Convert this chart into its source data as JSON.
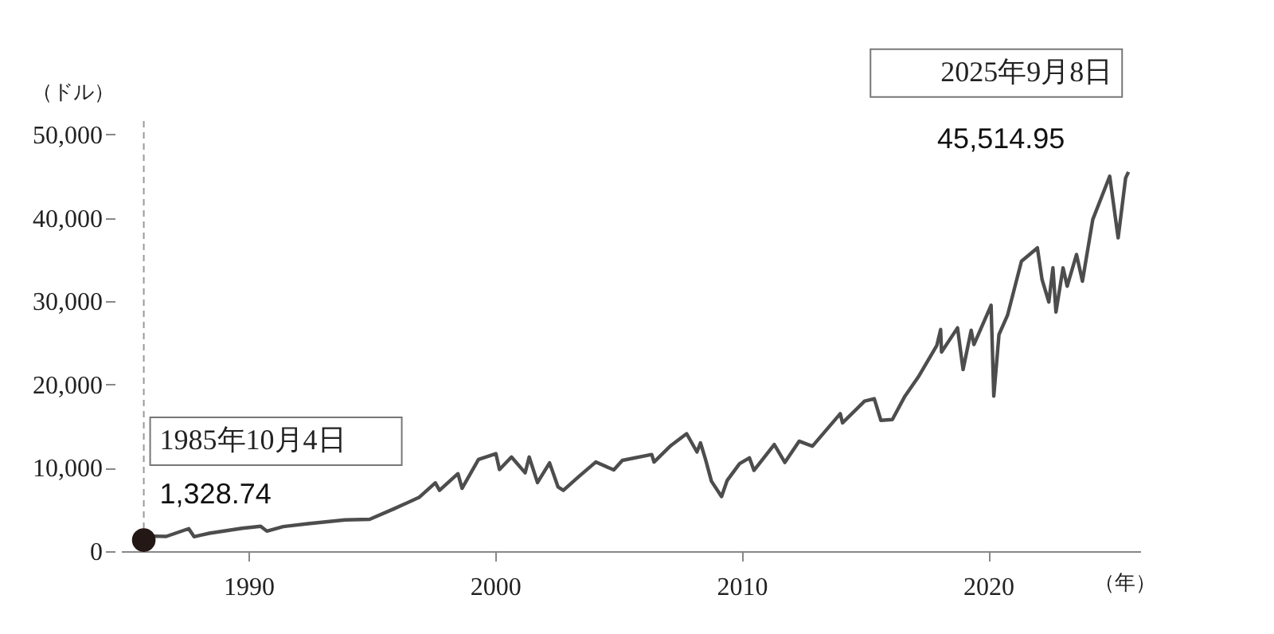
{
  "chart_data": {
    "type": "line",
    "ylabel": "（ドル）",
    "xlabel": "（年）",
    "xlim": [
      "1984-11-01",
      "2026-03-01"
    ],
    "ylim": [
      0,
      52000
    ],
    "xticks": [
      "1990",
      "2000",
      "2010",
      "2020"
    ],
    "yticks": [
      0,
      {
        "value": 10000,
        "label": "10,000"
      },
      {
        "value": 20000,
        "label": "20,000"
      },
      {
        "value": 30000,
        "label": "30,000"
      },
      {
        "value": 40000,
        "label": "40,000"
      },
      {
        "value": 50000,
        "label": "50,000"
      }
    ],
    "grid": false,
    "series": [
      {
        "color": "#4d4d4d",
        "x": [
          "1985-10-04",
          "1986-03-01",
          "1986-09-01",
          "1987-08-01",
          "1987-10-19",
          "1988-06-01",
          "1989-10-01",
          "1990-07-01",
          "1990-10-01",
          "1991-06-01",
          "1992-06-01",
          "1993-12-01",
          "1994-12-01",
          "1995-12-01",
          "1996-12-01",
          "1997-08-01",
          "1997-10-01",
          "1998-07-01",
          "1998-08-31",
          "1999-05-01",
          "2000-01-14",
          "2000-03-07",
          "2000-09-01",
          "2001-03-22",
          "2001-05-21",
          "2001-09-21",
          "2002-03-19",
          "2002-07-23",
          "2002-10-09",
          "2003-06-01",
          "2004-02-01",
          "2004-10-25",
          "2005-03-01",
          "2006-05-10",
          "2006-06-13",
          "2007-02-20",
          "2007-10-09",
          "2008-03-10",
          "2008-05-01",
          "2008-07-15",
          "2008-10-10",
          "2009-03-09",
          "2009-06-01",
          "2009-12-01",
          "2010-04-26",
          "2010-07-02",
          "2011-04-29",
          "2011-10-03",
          "2012-05-01",
          "2012-11-15",
          "2013-12-31",
          "2014-02-03",
          "2014-12-26",
          "2015-05-19",
          "2015-08-25",
          "2016-02-11",
          "2016-08-15",
          "2017-03-01",
          "2017-12-01",
          "2018-01-26",
          "2018-02-08",
          "2018-10-03",
          "2018-12-24",
          "2019-04-23",
          "2019-06-03",
          "2020-02-12",
          "2020-03-23",
          "2020-06-08",
          "2020-10-12",
          "2021-05-07",
          "2021-12-29",
          "2022-03-08",
          "2022-06-16",
          "2022-08-16",
          "2022-09-30",
          "2023-01-13",
          "2023-03-15",
          "2023-07-31",
          "2023-10-27",
          "2024-03-28",
          "2024-12-04",
          "2025-04-08",
          "2025-07-28",
          "2025-09-08"
        ],
        "values": [
          1328.74,
          1800,
          1770,
          2700,
          1740,
          2150,
          2750,
          2990,
          2400,
          2950,
          3300,
          3750,
          3830,
          5100,
          6450,
          8200,
          7300,
          9300,
          7540,
          11000,
          11700,
          9800,
          11300,
          9400,
          11300,
          8230,
          10600,
          7700,
          7300,
          9000,
          10700,
          9750,
          10900,
          11600,
          10700,
          12700,
          14100,
          11900,
          13000,
          11000,
          8400,
          6550,
          8500,
          10500,
          11200,
          9700,
          12800,
          10650,
          13200,
          12600,
          16500,
          15400,
          18000,
          18300,
          15700,
          15800,
          18600,
          20900,
          24700,
          26600,
          23900,
          26800,
          21800,
          26500,
          24800,
          29500,
          18600,
          26000,
          28300,
          34800,
          36400,
          32600,
          29900,
          34000,
          28700,
          34000,
          31800,
          35600,
          32400,
          39800,
          45000,
          37600,
          44800,
          45514.95
        ]
      },
      {
        "type": "scatter",
        "color": "#231815",
        "marker": "circle",
        "x": [
          "1985-10-04"
        ],
        "values": [
          1328.74
        ]
      }
    ],
    "ref_lines": [
      {
        "axis": "x",
        "value": "1985-10-04",
        "color": "#999999",
        "line_style": "dashed"
      }
    ],
    "annotations": [
      "1985年10月4日",
      {
        "text": "1,328.74",
        "x": "1985-10-04",
        "y": 1328.74
      },
      "2025年9月8日",
      {
        "text": "45,514.95",
        "x": "2025-09-08",
        "y": 45514.95
      }
    ]
  }
}
